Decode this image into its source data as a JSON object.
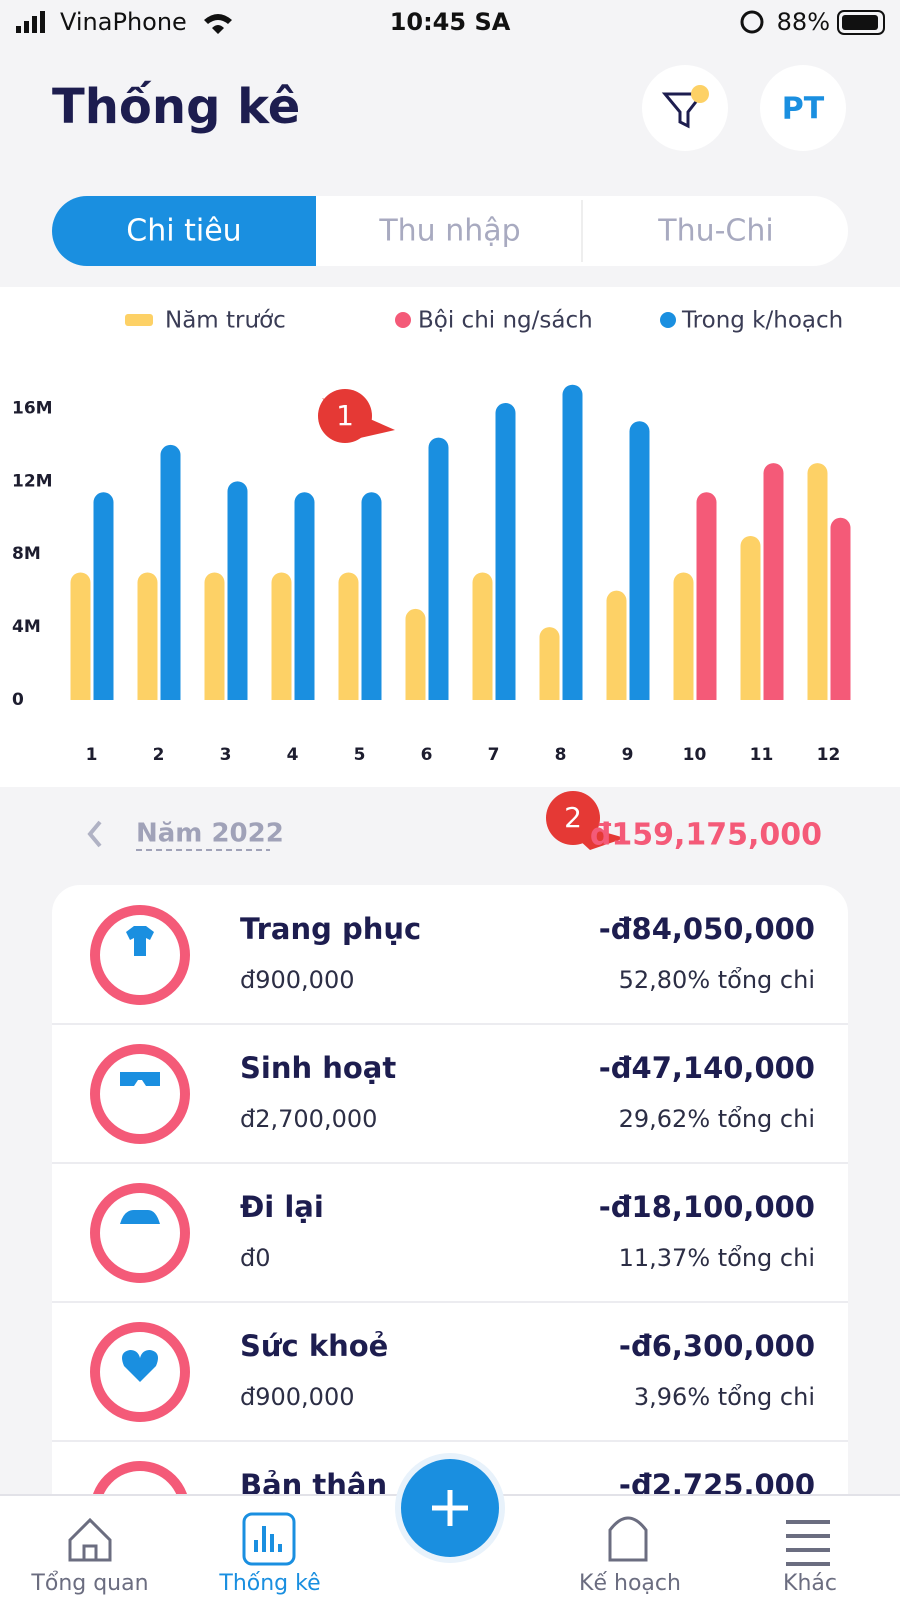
{
  "status_bar": {
    "carrier": "VinaPhone",
    "time": "10:45 SA",
    "battery": "88%"
  },
  "header": {
    "title": "Thống kê",
    "avatar": "PT"
  },
  "tabs": [
    "Chi tiêu",
    "Thu nhập",
    "Thu-Chi"
  ],
  "chart_data": {
    "type": "bar",
    "categories": [
      "1",
      "2",
      "3",
      "4",
      "5",
      "6",
      "7",
      "8",
      "9",
      "10",
      "11",
      "12"
    ],
    "series": [
      {
        "name": "Năm trước",
        "color": "#fdd166",
        "values": [
          7000000,
          7000000,
          7000000,
          7000000,
          7000000,
          5000000,
          7000000,
          4000000,
          6000000,
          7000000,
          9000000,
          13000000
        ]
      },
      {
        "name": "Bội chi ng/sách",
        "color": "#f45a78",
        "values": [
          null,
          null,
          null,
          null,
          null,
          null,
          null,
          null,
          null,
          11400000,
          13000000,
          10000000
        ]
      },
      {
        "name": "Trong k/hoạch",
        "color": "#1a8fe0",
        "values": [
          11400000,
          14000000,
          12000000,
          11400000,
          11400000,
          14400000,
          16300000,
          17300000,
          15300000,
          null,
          null,
          null
        ]
      }
    ],
    "ylim": [
      0,
      18000000
    ],
    "yticks": [
      {
        "value": 0,
        "label": "0"
      },
      {
        "value": 4000000,
        "label": "4M"
      },
      {
        "value": 8000000,
        "label": "8M"
      },
      {
        "value": 12000000,
        "label": "12M"
      },
      {
        "value": 16000000,
        "label": "16M"
      }
    ],
    "grid": false,
    "annotation": "1"
  },
  "summary": {
    "period": "Năm 2022",
    "total": "đ159,175,000",
    "annotation": "2"
  },
  "category_list": [
    {
      "name": "Trang phục",
      "budget": "đ900,000",
      "amount": "-đ84,050,000",
      "share": "52,80% tổng chi"
    },
    {
      "name": "Sinh hoạt",
      "budget": "đ2,700,000",
      "amount": "-đ47,140,000",
      "share": "29,62% tổng chi"
    },
    {
      "name": "Đi lại",
      "budget": "đ0",
      "amount": "-đ18,100,000",
      "share": "11,37% tổng chi"
    },
    {
      "name": "Sức khoẻ",
      "budget": "đ900,000",
      "amount": "-đ6,300,000",
      "share": "3,96% tổng chi"
    },
    {
      "name": "Bản thân",
      "amount": "-đ2,725,000"
    }
  ],
  "nav": [
    "Tổng quan",
    "Thống kê",
    "Kế hoạch",
    "Khác"
  ]
}
